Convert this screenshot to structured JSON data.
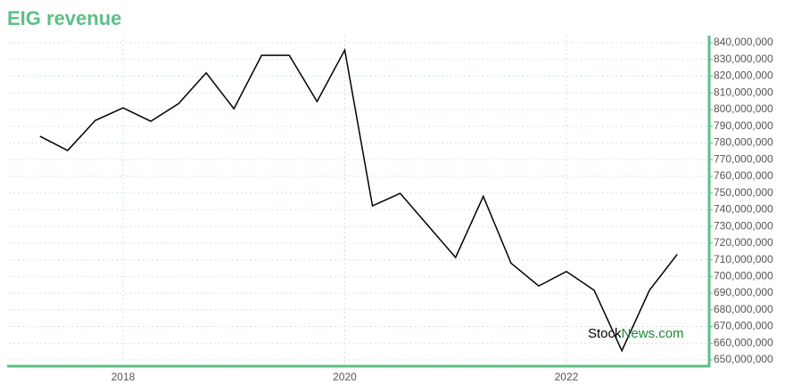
{
  "chart_data": {
    "type": "line",
    "title": "EIG revenue",
    "x": [
      2017.25,
      2017.5,
      2017.75,
      2018,
      2018.25,
      2018.5,
      2018.75,
      2019,
      2019.25,
      2019.5,
      2019.75,
      2020,
      2020.25,
      2020.5,
      2020.75,
      2021,
      2021.25,
      2021.5,
      2021.75,
      2022,
      2022.25,
      2022.5,
      2022.75,
      2023
    ],
    "series": [
      {
        "name": "revenue",
        "color": "#000000",
        "values": [
          784000000,
          775500000,
          793500000,
          801000000,
          793000000,
          803500000,
          822000000,
          800500000,
          832500000,
          832500000,
          804800000,
          835700000,
          742300000,
          749800000,
          730600000,
          711400000,
          748000000,
          708000000,
          694300000,
          703000000,
          691800000,
          655500000,
          691800000,
          713300000
        ]
      }
    ],
    "xlim": [
      2016.97,
      2023.28
    ],
    "xticks": [
      2018,
      2020,
      2022
    ],
    "ylim": [
      646800000,
      844300000
    ],
    "yticks": [
      {
        "value": 650000000,
        "label": "650,000,000"
      },
      {
        "value": 660000000,
        "label": "660,000,000"
      },
      {
        "value": 670000000,
        "label": "670,000,000"
      },
      {
        "value": 680000000,
        "label": "680,000,000"
      },
      {
        "value": 690000000,
        "label": "690,000,000"
      },
      {
        "value": 700000000,
        "label": "700,000,000"
      },
      {
        "value": 710000000,
        "label": "710,000,000"
      },
      {
        "value": 720000000,
        "label": "720,000,000"
      },
      {
        "value": 730000000,
        "label": "730,000,000"
      },
      {
        "value": 740000000,
        "label": "740,000,000"
      },
      {
        "value": 750000000,
        "label": "750,000,000"
      },
      {
        "value": 760000000,
        "label": "760,000,000"
      },
      {
        "value": 770000000,
        "label": "770,000,000"
      },
      {
        "value": 780000000,
        "label": "780,000,000"
      },
      {
        "value": 790000000,
        "label": "790,000,000"
      },
      {
        "value": 800000000,
        "label": "800,000,000"
      },
      {
        "value": 810000000,
        "label": "810,000,000"
      },
      {
        "value": 820000000,
        "label": "820,000,000"
      },
      {
        "value": 830000000,
        "label": "830,000,000"
      },
      {
        "value": 840000000,
        "label": "840,000,000"
      }
    ],
    "grid": true,
    "axis_color": "#5cbf85",
    "watermark": [
      "Stock",
      "News.com"
    ]
  }
}
